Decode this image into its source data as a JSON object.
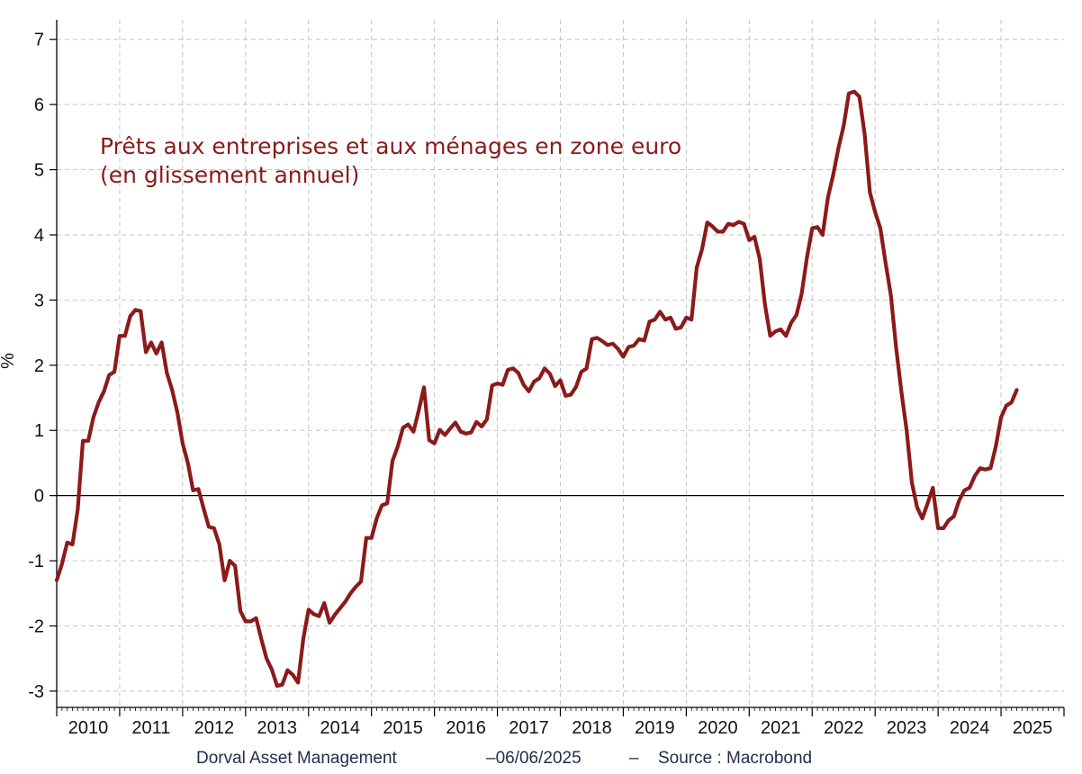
{
  "chart_data": {
    "type": "line",
    "title": "",
    "annotation_lines": [
      "Prêts aux entreprises et aux ménages en zone euro",
      "(en glissement annuel)"
    ],
    "ylabel": "%",
    "xlabel": "",
    "ylim": [
      -3.25,
      7.3
    ],
    "y_ticks": [
      -3,
      -2,
      -1,
      0,
      1,
      2,
      3,
      4,
      5,
      6,
      7
    ],
    "x_start_year": 2010,
    "x_end_year": 2026,
    "x_tick_labels": [
      "2010",
      "2011",
      "2012",
      "2013",
      "2014",
      "2015",
      "2016",
      "2017",
      "2018",
      "2019",
      "2020",
      "2021",
      "2022",
      "2023",
      "2024",
      "2025"
    ],
    "grid": true,
    "zero_line": true,
    "series_color": "#8b1a1a",
    "series": [
      {
        "x": [
          "2010-01",
          "2010-02",
          "2010-03",
          "2010-04",
          "2010-05",
          "2010-06",
          "2010-07",
          "2010-08",
          "2010-09",
          "2010-10",
          "2010-11",
          "2010-12",
          "2011-01",
          "2011-02",
          "2011-03",
          "2011-04",
          "2011-05",
          "2011-06",
          "2011-07",
          "2011-08",
          "2011-09",
          "2011-10",
          "2011-11",
          "2011-12",
          "2012-01",
          "2012-02",
          "2012-03",
          "2012-04",
          "2012-05",
          "2012-06",
          "2012-07",
          "2012-08",
          "2012-09",
          "2012-10",
          "2012-11",
          "2012-12",
          "2013-01",
          "2013-02",
          "2013-03",
          "2013-04",
          "2013-05",
          "2013-06",
          "2013-07",
          "2013-08",
          "2013-09",
          "2013-10",
          "2013-11",
          "2013-12",
          "2014-01",
          "2014-02",
          "2014-03",
          "2014-04",
          "2014-05",
          "2014-06",
          "2014-07",
          "2014-08",
          "2014-09",
          "2014-10",
          "2014-11",
          "2014-12",
          "2015-01",
          "2015-02",
          "2015-03",
          "2015-04",
          "2015-05",
          "2015-06",
          "2015-07",
          "2015-08",
          "2015-09",
          "2015-10",
          "2015-11",
          "2015-12",
          "2016-01",
          "2016-02",
          "2016-03",
          "2016-04",
          "2016-05",
          "2016-06",
          "2016-07",
          "2016-08",
          "2016-09",
          "2016-10",
          "2016-11",
          "2016-12",
          "2017-01",
          "2017-02",
          "2017-03",
          "2017-04",
          "2017-05",
          "2017-06",
          "2017-07",
          "2017-08",
          "2017-09",
          "2017-10",
          "2017-11",
          "2017-12",
          "2018-01",
          "2018-02",
          "2018-03",
          "2018-04",
          "2018-05",
          "2018-06",
          "2018-07",
          "2018-08",
          "2018-09",
          "2018-10",
          "2018-11",
          "2018-12",
          "2019-01",
          "2019-02",
          "2019-03",
          "2019-04",
          "2019-05",
          "2019-06",
          "2019-07",
          "2019-08",
          "2019-09",
          "2019-10",
          "2019-11",
          "2019-12",
          "2020-01",
          "2020-02",
          "2020-03",
          "2020-04",
          "2020-05",
          "2020-06",
          "2020-07",
          "2020-08",
          "2020-09",
          "2020-10",
          "2020-11",
          "2020-12",
          "2021-01",
          "2021-02",
          "2021-03",
          "2021-04",
          "2021-05",
          "2021-06",
          "2021-07",
          "2021-08",
          "2021-09",
          "2021-10",
          "2021-11",
          "2021-12",
          "2022-01",
          "2022-02",
          "2022-03",
          "2022-04",
          "2022-05",
          "2022-06",
          "2022-07",
          "2022-08",
          "2022-09",
          "2022-10",
          "2022-11",
          "2022-12",
          "2023-01",
          "2023-02",
          "2023-03",
          "2023-04",
          "2023-05",
          "2023-06",
          "2023-07",
          "2023-08",
          "2023-09",
          "2023-10",
          "2023-11",
          "2023-12",
          "2024-01",
          "2024-02",
          "2024-03",
          "2024-04",
          "2024-05",
          "2024-06",
          "2024-07",
          "2024-08",
          "2024-09",
          "2024-10",
          "2024-11",
          "2024-12",
          "2025-01",
          "2025-02",
          "2025-03",
          "2025-04"
        ],
        "y": [
          -1.3,
          -1.05,
          -0.72,
          -0.75,
          -0.22,
          0.84,
          0.84,
          1.2,
          1.43,
          1.6,
          1.85,
          1.9,
          2.45,
          2.45,
          2.75,
          2.85,
          2.83,
          2.2,
          2.35,
          2.18,
          2.35,
          1.88,
          1.62,
          1.28,
          0.8,
          0.5,
          0.08,
          0.1,
          -0.2,
          -0.48,
          -0.5,
          -0.75,
          -1.3,
          -1.0,
          -1.08,
          -1.77,
          -1.93,
          -1.93,
          -1.88,
          -2.2,
          -2.5,
          -2.67,
          -2.92,
          -2.9,
          -2.68,
          -2.75,
          -2.87,
          -2.2,
          -1.75,
          -1.82,
          -1.85,
          -1.65,
          -1.95,
          -1.83,
          -1.73,
          -1.63,
          -1.5,
          -1.4,
          -1.32,
          -0.65,
          -0.65,
          -0.35,
          -0.15,
          -0.12,
          0.53,
          0.75,
          1.04,
          1.09,
          0.98,
          1.3,
          1.66,
          0.85,
          0.8,
          1.01,
          0.93,
          1.03,
          1.12,
          0.98,
          0.95,
          0.97,
          1.13,
          1.06,
          1.17,
          1.69,
          1.72,
          1.7,
          1.93,
          1.95,
          1.88,
          1.7,
          1.6,
          1.75,
          1.8,
          1.95,
          1.87,
          1.68,
          1.77,
          1.53,
          1.55,
          1.67,
          1.9,
          1.95,
          2.4,
          2.42,
          2.37,
          2.31,
          2.33,
          2.25,
          2.13,
          2.28,
          2.3,
          2.4,
          2.38,
          2.67,
          2.7,
          2.82,
          2.7,
          2.73,
          2.56,
          2.58,
          2.73,
          2.7,
          3.5,
          3.78,
          4.19,
          4.13,
          4.05,
          4.05,
          4.17,
          4.15,
          4.2,
          4.17,
          3.92,
          3.97,
          3.63,
          2.93,
          2.45,
          2.52,
          2.55,
          2.45,
          2.65,
          2.77,
          3.1,
          3.65,
          4.1,
          4.12,
          4.0,
          4.57,
          4.92,
          5.33,
          5.67,
          6.17,
          6.2,
          6.12,
          5.55,
          4.65,
          4.35,
          4.1,
          3.57,
          3.07,
          2.27,
          1.6,
          1.0,
          0.2,
          -0.18,
          -0.35,
          -0.12,
          0.12,
          -0.5,
          -0.5,
          -0.38,
          -0.32,
          -0.08,
          0.08,
          0.12,
          0.3,
          0.42,
          0.4,
          0.42,
          0.75,
          1.2,
          1.38,
          1.43,
          1.62
        ]
      }
    ]
  },
  "footer": {
    "publisher": "Dorval Asset Management",
    "date": "–06/06/2025",
    "separator": "–",
    "source": "Source : Macrobond"
  }
}
